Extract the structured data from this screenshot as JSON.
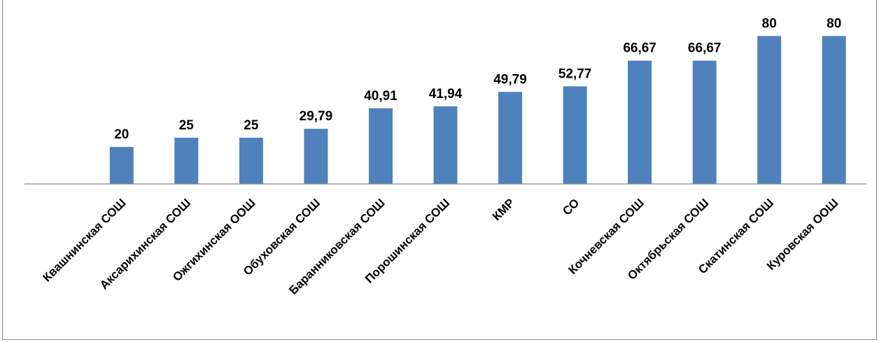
{
  "chart_data": {
    "type": "bar",
    "title": "",
    "xlabel": "",
    "ylabel": "",
    "ylim": [
      0,
      87
    ],
    "grid": false,
    "legend": "none",
    "bar_color": "#4F81BD",
    "axis_color": "#868686",
    "categories": [
      "",
      "Квашнинская СОШ",
      "Аксарихинская СОШ",
      "Ожгихинская ООШ",
      "Обуховская СОШ",
      "Баранниковская СОШ",
      "Порошинская СОШ",
      "КМР",
      "СО",
      "Кочневская СОШ",
      "Октябрьская СОШ",
      "Скатинская СОШ",
      "Куровская ООШ"
    ],
    "values": [
      null,
      20,
      25,
      25,
      29.79,
      40.91,
      41.94,
      49.79,
      52.77,
      66.67,
      66.67,
      80,
      80
    ],
    "data_labels": [
      "",
      "20",
      "25",
      "25",
      "29,79",
      "40,91",
      "41,94",
      "49,79",
      "52,77",
      "66,67",
      "66,67",
      "80",
      "80"
    ]
  }
}
